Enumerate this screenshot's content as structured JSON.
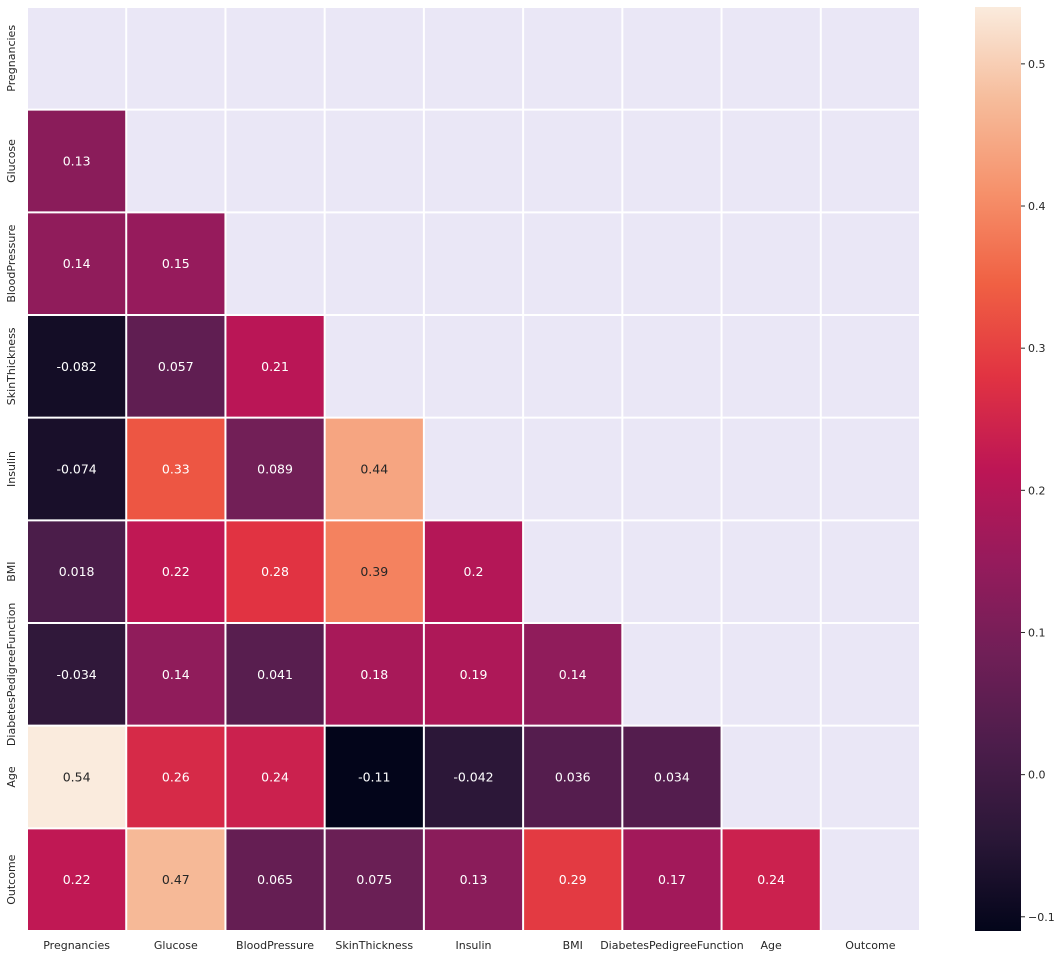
{
  "chart_data": {
    "type": "heatmap",
    "title": "",
    "xlabel": "",
    "ylabel": "",
    "variables": [
      "Pregnancies",
      "Glucose",
      "BloodPressure",
      "SkinThickness",
      "Insulin",
      "BMI",
      "DiabetesPedigreeFunction",
      "Age",
      "Outcome"
    ],
    "mask": "upper-triangle-including-diagonal",
    "cells": [
      {
        "row": 1,
        "col": 0,
        "value": 0.13,
        "label": "0.13"
      },
      {
        "row": 2,
        "col": 0,
        "value": 0.14,
        "label": "0.14"
      },
      {
        "row": 2,
        "col": 1,
        "value": 0.15,
        "label": "0.15"
      },
      {
        "row": 3,
        "col": 0,
        "value": -0.082,
        "label": "-0.082"
      },
      {
        "row": 3,
        "col": 1,
        "value": 0.057,
        "label": "0.057"
      },
      {
        "row": 3,
        "col": 2,
        "value": 0.21,
        "label": "0.21"
      },
      {
        "row": 4,
        "col": 0,
        "value": -0.074,
        "label": "-0.074"
      },
      {
        "row": 4,
        "col": 1,
        "value": 0.33,
        "label": "0.33"
      },
      {
        "row": 4,
        "col": 2,
        "value": 0.089,
        "label": "0.089"
      },
      {
        "row": 4,
        "col": 3,
        "value": 0.44,
        "label": "0.44"
      },
      {
        "row": 5,
        "col": 0,
        "value": 0.018,
        "label": "0.018"
      },
      {
        "row": 5,
        "col": 1,
        "value": 0.22,
        "label": "0.22"
      },
      {
        "row": 5,
        "col": 2,
        "value": 0.28,
        "label": "0.28"
      },
      {
        "row": 5,
        "col": 3,
        "value": 0.39,
        "label": "0.39"
      },
      {
        "row": 5,
        "col": 4,
        "value": 0.2,
        "label": "0.2"
      },
      {
        "row": 6,
        "col": 0,
        "value": -0.034,
        "label": "-0.034"
      },
      {
        "row": 6,
        "col": 1,
        "value": 0.14,
        "label": "0.14"
      },
      {
        "row": 6,
        "col": 2,
        "value": 0.041,
        "label": "0.041"
      },
      {
        "row": 6,
        "col": 3,
        "value": 0.18,
        "label": "0.18"
      },
      {
        "row": 6,
        "col": 4,
        "value": 0.19,
        "label": "0.19"
      },
      {
        "row": 6,
        "col": 5,
        "value": 0.14,
        "label": "0.14"
      },
      {
        "row": 7,
        "col": 0,
        "value": 0.54,
        "label": "0.54"
      },
      {
        "row": 7,
        "col": 1,
        "value": 0.26,
        "label": "0.26"
      },
      {
        "row": 7,
        "col": 2,
        "value": 0.24,
        "label": "0.24"
      },
      {
        "row": 7,
        "col": 3,
        "value": -0.11,
        "label": "-0.11"
      },
      {
        "row": 7,
        "col": 4,
        "value": -0.042,
        "label": "-0.042"
      },
      {
        "row": 7,
        "col": 5,
        "value": 0.036,
        "label": "0.036"
      },
      {
        "row": 7,
        "col": 6,
        "value": 0.034,
        "label": "0.034"
      },
      {
        "row": 8,
        "col": 0,
        "value": 0.22,
        "label": "0.22"
      },
      {
        "row": 8,
        "col": 1,
        "value": 0.47,
        "label": "0.47"
      },
      {
        "row": 8,
        "col": 2,
        "value": 0.065,
        "label": "0.065"
      },
      {
        "row": 8,
        "col": 3,
        "value": 0.075,
        "label": "0.075"
      },
      {
        "row": 8,
        "col": 4,
        "value": 0.13,
        "label": "0.13"
      },
      {
        "row": 8,
        "col": 5,
        "value": 0.29,
        "label": "0.29"
      },
      {
        "row": 8,
        "col": 6,
        "value": 0.17,
        "label": "0.17"
      },
      {
        "row": 8,
        "col": 7,
        "value": 0.24,
        "label": "0.24"
      }
    ],
    "colorbar": {
      "colormap": "rocket",
      "vmin": -0.11,
      "vmax": 0.54,
      "ticks": [
        -0.1,
        0.0,
        0.1,
        0.2,
        0.3,
        0.4,
        0.5
      ],
      "tick_labels": [
        "−0.1",
        "0.0",
        "0.1",
        "0.2",
        "0.3",
        "0.4",
        "0.5"
      ]
    },
    "grid": false
  },
  "colors": {
    "background": "#eae7f6",
    "cell_border": "#ffffff",
    "text_dark": "#262626",
    "text_light": "#ffffff",
    "colormap_stops": [
      "#03051a",
      "#2a1737",
      "#4c1d4b",
      "#701f57",
      "#961b5c",
      "#bd1655",
      "#e13342",
      "#f06043",
      "#f6916b",
      "#f6bc9b",
      "#faebdd"
    ]
  }
}
